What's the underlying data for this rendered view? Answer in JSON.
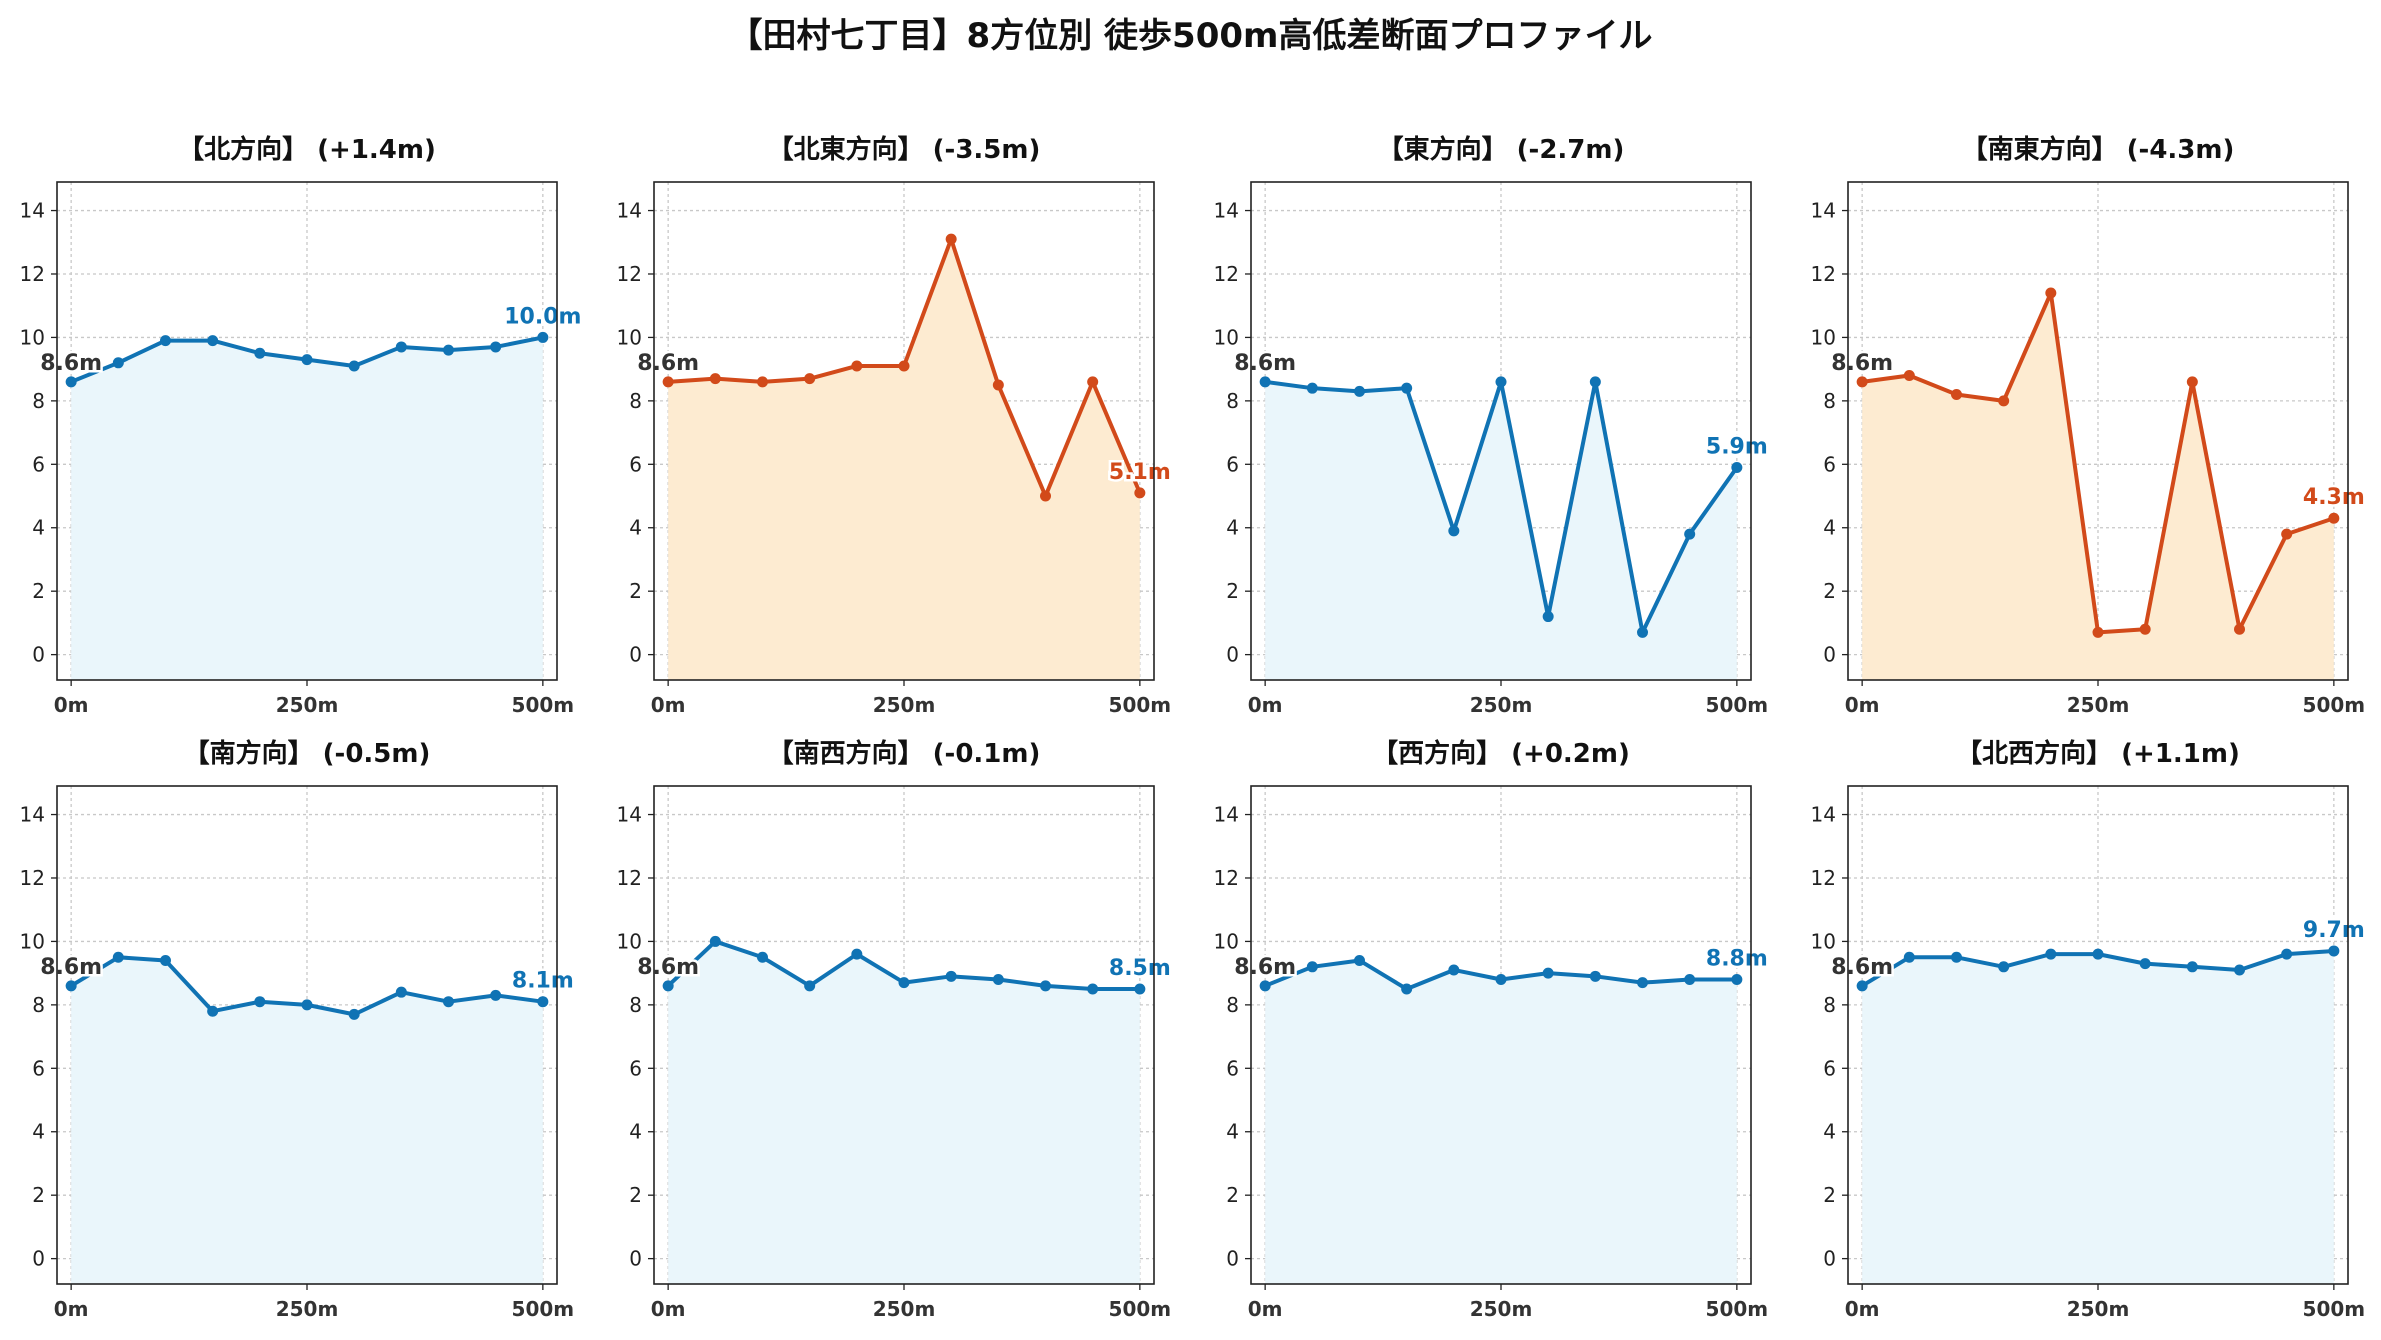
{
  "title": "【田村七丁目】8方位別 徒歩500m高低差断面プロファイル",
  "colors": {
    "up_line": "#1073b4",
    "up_fill": "#eaf6fb",
    "down_line": "#d24a1a",
    "down_fill": "#fdebd1",
    "start_label": "#333333",
    "grid": "#c8c8c8"
  },
  "chart_data": [
    {
      "type": "line",
      "title": "【北方向】 (+1.4m)",
      "trend": "up",
      "x": [
        0,
        50,
        100,
        150,
        200,
        250,
        300,
        350,
        400,
        450,
        500
      ],
      "y": [
        8.6,
        9.2,
        9.9,
        9.9,
        9.5,
        9.3,
        9.1,
        9.7,
        9.6,
        9.7,
        10.0
      ],
      "start_label": "8.6m",
      "end_label": "10.0m",
      "xticks": [
        "0m",
        "250m",
        "500m"
      ],
      "yticks": [
        "0",
        "2",
        "4",
        "6",
        "8",
        "10",
        "12",
        "14"
      ],
      "ylim": [
        -0.8,
        14.9
      ],
      "xlim": [
        -15,
        515
      ]
    },
    {
      "type": "line",
      "title": "【北東方向】 (-3.5m)",
      "trend": "down",
      "x": [
        0,
        50,
        100,
        150,
        200,
        250,
        300,
        350,
        400,
        450,
        500
      ],
      "y": [
        8.6,
        8.7,
        8.6,
        8.7,
        9.1,
        9.1,
        13.1,
        8.5,
        5.0,
        8.6,
        5.1
      ],
      "start_label": "8.6m",
      "end_label": "5.1m",
      "xticks": [
        "0m",
        "250m",
        "500m"
      ],
      "yticks": [
        "0",
        "2",
        "4",
        "6",
        "8",
        "10",
        "12",
        "14"
      ],
      "ylim": [
        -0.8,
        14.9
      ],
      "xlim": [
        -15,
        515
      ]
    },
    {
      "type": "line",
      "title": "【東方向】 (-2.7m)",
      "trend": "up",
      "x": [
        0,
        50,
        100,
        150,
        200,
        250,
        300,
        350,
        400,
        450,
        500
      ],
      "y": [
        8.6,
        8.4,
        8.3,
        8.4,
        3.9,
        8.6,
        1.2,
        8.6,
        0.7,
        3.8,
        5.9
      ],
      "start_label": "8.6m",
      "end_label": "5.9m",
      "xticks": [
        "0m",
        "250m",
        "500m"
      ],
      "yticks": [
        "0",
        "2",
        "4",
        "6",
        "8",
        "10",
        "12",
        "14"
      ],
      "ylim": [
        -0.8,
        14.9
      ],
      "xlim": [
        -15,
        515
      ]
    },
    {
      "type": "line",
      "title": "【南東方向】 (-4.3m)",
      "trend": "down",
      "x": [
        0,
        50,
        100,
        150,
        200,
        250,
        300,
        350,
        400,
        450,
        500
      ],
      "y": [
        8.6,
        8.8,
        8.2,
        8.0,
        11.4,
        0.7,
        0.8,
        8.6,
        0.8,
        3.8,
        4.3
      ],
      "start_label": "8.6m",
      "end_label": "4.3m",
      "xticks": [
        "0m",
        "250m",
        "500m"
      ],
      "yticks": [
        "0",
        "2",
        "4",
        "6",
        "8",
        "10",
        "12",
        "14"
      ],
      "ylim": [
        -0.8,
        14.9
      ],
      "xlim": [
        -15,
        515
      ]
    },
    {
      "type": "line",
      "title": "【南方向】 (-0.5m)",
      "trend": "up",
      "x": [
        0,
        50,
        100,
        150,
        200,
        250,
        300,
        350,
        400,
        450,
        500
      ],
      "y": [
        8.6,
        9.5,
        9.4,
        7.8,
        8.1,
        8.0,
        7.7,
        8.4,
        8.1,
        8.3,
        8.1
      ],
      "start_label": "8.6m",
      "end_label": "8.1m",
      "xticks": [
        "0m",
        "250m",
        "500m"
      ],
      "yticks": [
        "0",
        "2",
        "4",
        "6",
        "8",
        "10",
        "12",
        "14"
      ],
      "ylim": [
        -0.8,
        14.9
      ],
      "xlim": [
        -15,
        515
      ]
    },
    {
      "type": "line",
      "title": "【南西方向】 (-0.1m)",
      "trend": "up",
      "x": [
        0,
        50,
        100,
        150,
        200,
        250,
        300,
        350,
        400,
        450,
        500
      ],
      "y": [
        8.6,
        10.0,
        9.5,
        8.6,
        9.6,
        8.7,
        8.9,
        8.8,
        8.6,
        8.5,
        8.5
      ],
      "start_label": "8.6m",
      "end_label": "8.5m",
      "xticks": [
        "0m",
        "250m",
        "500m"
      ],
      "yticks": [
        "0",
        "2",
        "4",
        "6",
        "8",
        "10",
        "12",
        "14"
      ],
      "ylim": [
        -0.8,
        14.9
      ],
      "xlim": [
        -15,
        515
      ]
    },
    {
      "type": "line",
      "title": "【西方向】 (+0.2m)",
      "trend": "up",
      "x": [
        0,
        50,
        100,
        150,
        200,
        250,
        300,
        350,
        400,
        450,
        500
      ],
      "y": [
        8.6,
        9.2,
        9.4,
        8.5,
        9.1,
        8.8,
        9.0,
        8.9,
        8.7,
        8.8,
        8.8
      ],
      "start_label": "8.6m",
      "end_label": "8.8m",
      "xticks": [
        "0m",
        "250m",
        "500m"
      ],
      "yticks": [
        "0",
        "2",
        "4",
        "6",
        "8",
        "10",
        "12",
        "14"
      ],
      "ylim": [
        -0.8,
        14.9
      ],
      "xlim": [
        -15,
        515
      ]
    },
    {
      "type": "line",
      "title": "【北西方向】 (+1.1m)",
      "trend": "up",
      "x": [
        0,
        50,
        100,
        150,
        200,
        250,
        300,
        350,
        400,
        450,
        500
      ],
      "y": [
        8.6,
        9.5,
        9.5,
        9.2,
        9.6,
        9.6,
        9.3,
        9.2,
        9.1,
        9.6,
        9.7
      ],
      "start_label": "8.6m",
      "end_label": "9.7m",
      "xticks": [
        "0m",
        "250m",
        "500m"
      ],
      "yticks": [
        "0",
        "2",
        "4",
        "6",
        "8",
        "10",
        "12",
        "14"
      ],
      "ylim": [
        -0.8,
        14.9
      ],
      "xlim": [
        -15,
        515
      ]
    }
  ]
}
